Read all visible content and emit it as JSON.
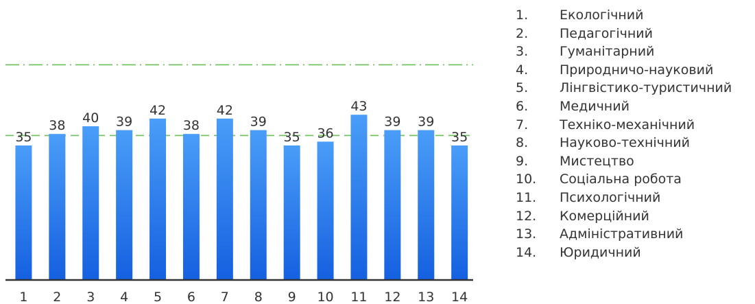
{
  "chart_data": {
    "type": "bar",
    "categories": [
      "1",
      "2",
      "3",
      "4",
      "5",
      "6",
      "7",
      "8",
      "9",
      "10",
      "11",
      "12",
      "13",
      "14"
    ],
    "values": [
      35,
      38,
      40,
      39,
      42,
      38,
      42,
      39,
      35,
      36,
      43,
      39,
      39,
      35
    ],
    "data_labels": [
      "35",
      "38",
      "40",
      "39",
      "42",
      "38",
      "42",
      "39",
      "35",
      "36",
      "43",
      "39",
      "39",
      "35"
    ],
    "reference_lines": [
      {
        "value": 37.6,
        "style": "dashed",
        "color": "#6bbf59"
      },
      {
        "value": 56,
        "style": "dash-dot",
        "color": "#6bbf59"
      }
    ],
    "ylim": [
      0,
      70
    ],
    "bar_color_top": "#4a9df8",
    "bar_color_bottom": "#1560e0",
    "axis_color": "#333333",
    "grid": false
  },
  "legend": {
    "position": "right",
    "items": [
      {
        "num": "1.",
        "label": "Екологічний"
      },
      {
        "num": "2.",
        "label": "Педагогічний"
      },
      {
        "num": "3.",
        "label": "Гуманітарний"
      },
      {
        "num": "4.",
        "label": "Природничо-науковий"
      },
      {
        "num": "5.",
        "label": "Лінгвістико-туристичний"
      },
      {
        "num": "6.",
        "label": "Медичний"
      },
      {
        "num": "7.",
        "label": "Техніко-механічний"
      },
      {
        "num": "8.",
        "label": "Науково-технічний"
      },
      {
        "num": "9.",
        "label": "Мистецтво"
      },
      {
        "num": "10.",
        "label": "Соціальна робота"
      },
      {
        "num": "11.",
        "label": "Психологічний"
      },
      {
        "num": "12.",
        "label": "Комерційний"
      },
      {
        "num": "13.",
        "label": "Адміністративний"
      },
      {
        "num": "14.",
        "label": "Юридичний"
      }
    ]
  }
}
